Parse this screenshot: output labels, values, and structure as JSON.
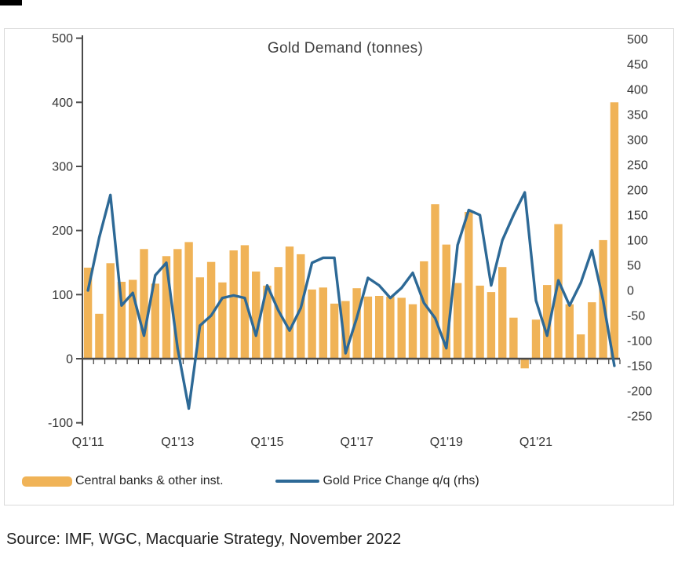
{
  "title": "Gold Demand (tonnes)",
  "source": "Source: IMF, WGC, Macquarie Strategy, November 2022",
  "legend": [
    {
      "label": "Central banks & other inst.",
      "swatch": "bar-swatch",
      "color": "#F0B357"
    },
    {
      "label": "Gold Price Change q/q (rhs)",
      "swatch": "line-swatch",
      "color": "#2D6996"
    }
  ],
  "colors": {
    "bar": "#F0B357",
    "line": "#2D6996",
    "axis": "#4a4a4a",
    "tick_text": "#333333",
    "title_text": "#3f3f3f"
  },
  "chart_data": {
    "type": "bar+line",
    "title": "Gold Demand (tonnes)",
    "categories": [
      "Q1'11",
      "Q2'11",
      "Q3'11",
      "Q4'11",
      "Q1'12",
      "Q2'12",
      "Q3'12",
      "Q4'12",
      "Q1'13",
      "Q2'13",
      "Q3'13",
      "Q4'13",
      "Q1'14",
      "Q2'14",
      "Q3'14",
      "Q4'14",
      "Q1'15",
      "Q2'15",
      "Q3'15",
      "Q4'15",
      "Q1'16",
      "Q2'16",
      "Q3'16",
      "Q4'16",
      "Q1'17",
      "Q2'17",
      "Q3'17",
      "Q4'17",
      "Q1'18",
      "Q2'18",
      "Q3'18",
      "Q4'18",
      "Q1'19",
      "Q2'19",
      "Q3'19",
      "Q4'19",
      "Q1'20",
      "Q2'20",
      "Q3'20",
      "Q4'20",
      "Q1'21",
      "Q2'21",
      "Q3'21",
      "Q4'21",
      "Q1'22",
      "Q2'22",
      "Q3'22",
      "Q4'22"
    ],
    "series": [
      {
        "name": "Central banks & other inst.",
        "type": "bar",
        "axis": "left",
        "values": [
          142,
          70,
          149,
          120,
          123,
          171,
          117,
          160,
          171,
          182,
          127,
          151,
          119,
          169,
          177,
          136,
          114,
          143,
          175,
          163,
          108,
          111,
          86,
          90,
          110,
          97,
          98,
          97,
          95,
          85,
          152,
          241,
          178,
          118,
          229,
          114,
          104,
          143,
          64,
          -15,
          61,
          115,
          210,
          85,
          38,
          88,
          185,
          400
        ]
      },
      {
        "name": "Gold Price Change q/q (rhs)",
        "type": "line",
        "axis": "right",
        "values": [
          0,
          105,
          190,
          -30,
          -5,
          -90,
          30,
          55,
          -115,
          -235,
          -70,
          -50,
          -15,
          -10,
          -15,
          -90,
          10,
          -40,
          -80,
          -35,
          55,
          65,
          65,
          -125,
          -55,
          25,
          10,
          -15,
          5,
          35,
          -25,
          -55,
          -115,
          90,
          160,
          150,
          10,
          100,
          150,
          195,
          -20,
          -90,
          20,
          -30,
          15,
          80,
          -20,
          -150
        ]
      }
    ],
    "left_axis": {
      "ticks": [
        500,
        400,
        300,
        200,
        100,
        0,
        -100
      ],
      "range": [
        -100,
        500
      ]
    },
    "right_axis": {
      "ticks": [
        500,
        450,
        400,
        350,
        300,
        250,
        200,
        150,
        100,
        50,
        0,
        -50,
        -100,
        -150,
        -200,
        -250
      ],
      "range": [
        -250,
        500
      ]
    },
    "x_axis": {
      "shown_labels": [
        "Q1'11",
        "Q1'13",
        "Q1'15",
        "Q1'17",
        "Q1'19",
        "Q1'21"
      ],
      "shown_label_indices": [
        0,
        8,
        16,
        24,
        32,
        40
      ]
    },
    "grid": false,
    "legend_position": "bottom"
  }
}
